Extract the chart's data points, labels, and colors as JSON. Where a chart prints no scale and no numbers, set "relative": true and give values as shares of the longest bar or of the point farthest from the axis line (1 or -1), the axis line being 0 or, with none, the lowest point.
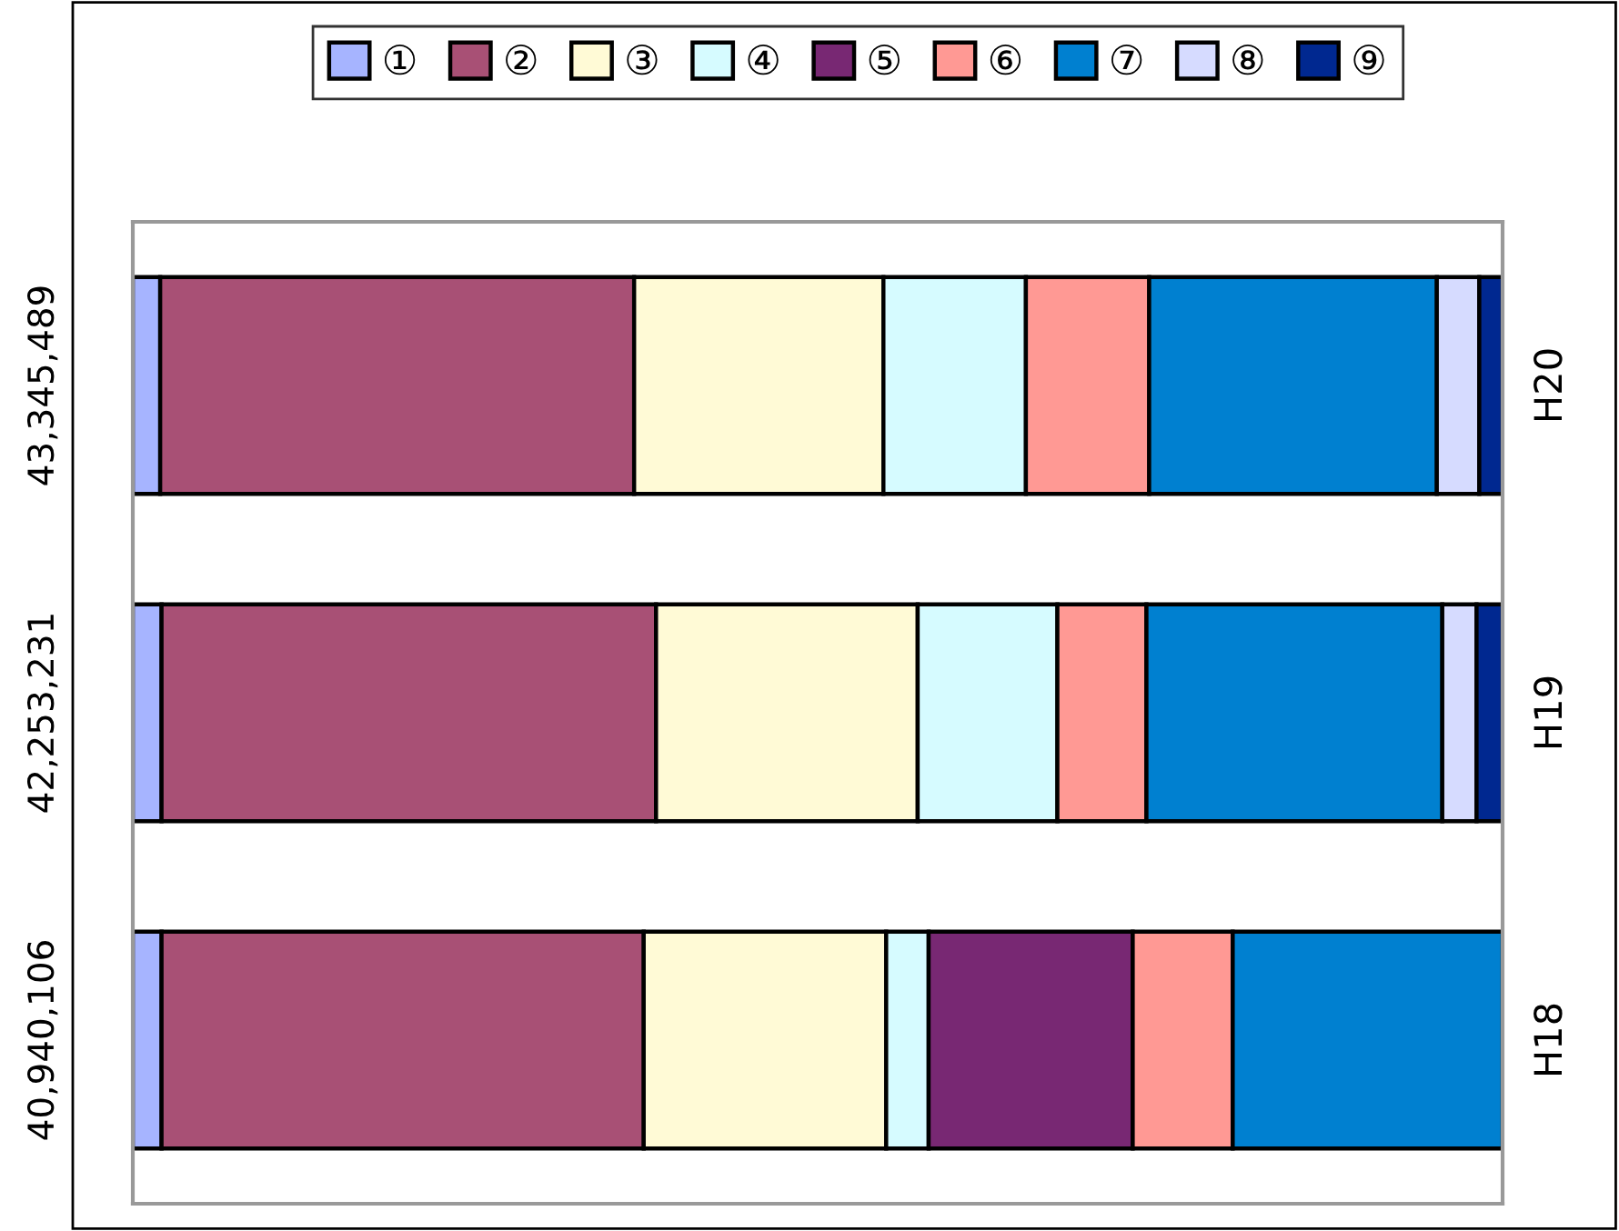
{
  "chart_data": {
    "type": "bar",
    "orientation": "horizontal",
    "stacked": true,
    "relative": true,
    "categories": [
      "H20",
      "H19",
      "H18"
    ],
    "series": [
      {
        "name": "①",
        "color": "#a6b4ff",
        "values": [
          0.02,
          0.021,
          0.021
        ]
      },
      {
        "name": "②",
        "color": "#a85075",
        "values": [
          0.346,
          0.361,
          0.352
        ]
      },
      {
        "name": "③",
        "color": "#fffad6",
        "values": [
          0.182,
          0.191,
          0.177
        ]
      },
      {
        "name": "④",
        "color": "#d6fbff",
        "values": [
          0.104,
          0.102,
          0.031
        ]
      },
      {
        "name": "⑤",
        "color": "#782873",
        "values": [
          null,
          null,
          0.149
        ]
      },
      {
        "name": "⑥",
        "color": "#ff9994",
        "values": [
          0.09,
          0.065,
          0.073
        ]
      },
      {
        "name": "⑦",
        "color": "#0080d0",
        "values": [
          0.21,
          0.216,
          0.197
        ]
      },
      {
        "name": "⑧",
        "color": "#d6dbff",
        "values": [
          0.031,
          0.025,
          null
        ]
      },
      {
        "name": "⑨",
        "color": "#002890",
        "values": [
          0.017,
          0.019,
          null
        ]
      }
    ],
    "annotations": [
      "43,345,489",
      "42,253,231",
      "40,940,106"
    ],
    "legend": "top",
    "grid": false
  }
}
